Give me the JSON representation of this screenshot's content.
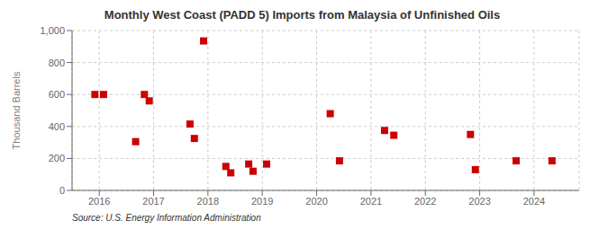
{
  "chart_data": {
    "type": "scatter",
    "title": "Monthly West Coast (PADD 5) Imports from Malaysia of Unfinished Oils",
    "ylabel": "Thousand Barrels",
    "annotations": [
      "Source: U.S. Energy Information Administration"
    ],
    "x": [
      2015.92,
      2016.08,
      2016.67,
      2016.83,
      2016.92,
      2017.67,
      2017.75,
      2017.92,
      2018.33,
      2018.42,
      2018.75,
      2018.83,
      2019.08,
      2020.25,
      2020.42,
      2021.25,
      2021.42,
      2022.83,
      2022.92,
      2023.67,
      2024.33
    ],
    "values": [
      600,
      600,
      305,
      600,
      560,
      415,
      325,
      935,
      150,
      110,
      165,
      120,
      165,
      480,
      185,
      375,
      345,
      350,
      130,
      185,
      185
    ],
    "color": "#cc0000",
    "marker": "square",
    "xlim": [
      2015.5,
      2024.83
    ],
    "xticks": [
      2016,
      2017,
      2018,
      2019,
      2020,
      2021,
      2022,
      2023,
      2024
    ],
    "ylim": [
      0,
      1000
    ],
    "yticks": [
      0,
      200,
      400,
      600,
      800,
      {
        "value": 1000,
        "label": "1,000"
      }
    ],
    "grid": true
  }
}
